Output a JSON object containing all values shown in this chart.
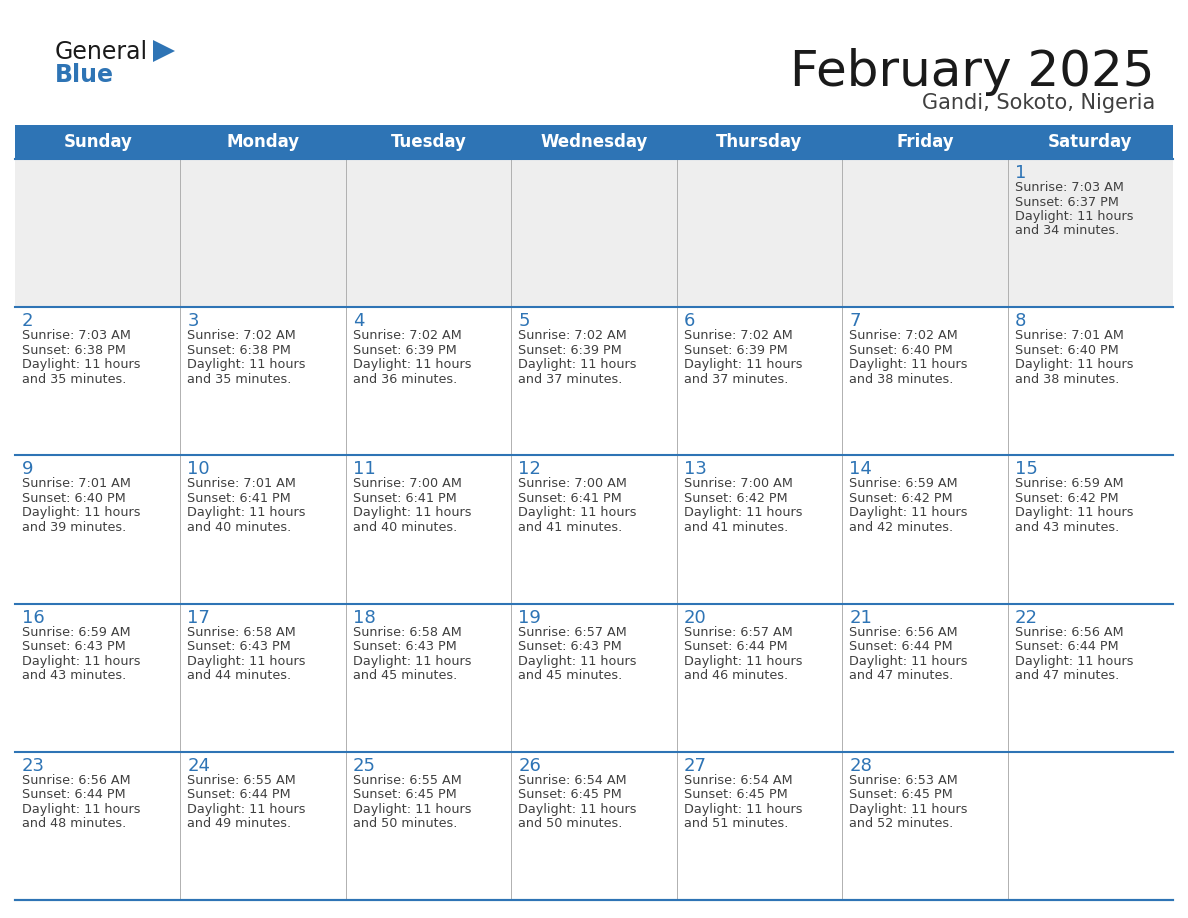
{
  "title": "February 2025",
  "subtitle": "Gandi, Sokoto, Nigeria",
  "days_of_week": [
    "Sunday",
    "Monday",
    "Tuesday",
    "Wednesday",
    "Thursday",
    "Friday",
    "Saturday"
  ],
  "header_bg": "#2e74b5",
  "header_text": "#ffffff",
  "cell_bg": "#ffffff",
  "cell_alt_bg": "#eeeeee",
  "border_color": "#2e74b5",
  "title_color": "#1a1a1a",
  "subtitle_color": "#404040",
  "day_number_color": "#2e74b5",
  "cell_text_color": "#404040",
  "logo_general_color": "#1a1a1a",
  "logo_blue_color": "#2e74b5",
  "calendar_data": [
    [
      null,
      null,
      null,
      null,
      null,
      null,
      {
        "day": 1,
        "sunrise": "7:03 AM",
        "sunset": "6:37 PM",
        "daylight_line1": "Daylight: 11 hours",
        "daylight_line2": "and 34 minutes."
      }
    ],
    [
      {
        "day": 2,
        "sunrise": "7:03 AM",
        "sunset": "6:38 PM",
        "daylight_line1": "Daylight: 11 hours",
        "daylight_line2": "and 35 minutes."
      },
      {
        "day": 3,
        "sunrise": "7:02 AM",
        "sunset": "6:38 PM",
        "daylight_line1": "Daylight: 11 hours",
        "daylight_line2": "and 35 minutes."
      },
      {
        "day": 4,
        "sunrise": "7:02 AM",
        "sunset": "6:39 PM",
        "daylight_line1": "Daylight: 11 hours",
        "daylight_line2": "and 36 minutes."
      },
      {
        "day": 5,
        "sunrise": "7:02 AM",
        "sunset": "6:39 PM",
        "daylight_line1": "Daylight: 11 hours",
        "daylight_line2": "and 37 minutes."
      },
      {
        "day": 6,
        "sunrise": "7:02 AM",
        "sunset": "6:39 PM",
        "daylight_line1": "Daylight: 11 hours",
        "daylight_line2": "and 37 minutes."
      },
      {
        "day": 7,
        "sunrise": "7:02 AM",
        "sunset": "6:40 PM",
        "daylight_line1": "Daylight: 11 hours",
        "daylight_line2": "and 38 minutes."
      },
      {
        "day": 8,
        "sunrise": "7:01 AM",
        "sunset": "6:40 PM",
        "daylight_line1": "Daylight: 11 hours",
        "daylight_line2": "and 38 minutes."
      }
    ],
    [
      {
        "day": 9,
        "sunrise": "7:01 AM",
        "sunset": "6:40 PM",
        "daylight_line1": "Daylight: 11 hours",
        "daylight_line2": "and 39 minutes."
      },
      {
        "day": 10,
        "sunrise": "7:01 AM",
        "sunset": "6:41 PM",
        "daylight_line1": "Daylight: 11 hours",
        "daylight_line2": "and 40 minutes."
      },
      {
        "day": 11,
        "sunrise": "7:00 AM",
        "sunset": "6:41 PM",
        "daylight_line1": "Daylight: 11 hours",
        "daylight_line2": "and 40 minutes."
      },
      {
        "day": 12,
        "sunrise": "7:00 AM",
        "sunset": "6:41 PM",
        "daylight_line1": "Daylight: 11 hours",
        "daylight_line2": "and 41 minutes."
      },
      {
        "day": 13,
        "sunrise": "7:00 AM",
        "sunset": "6:42 PM",
        "daylight_line1": "Daylight: 11 hours",
        "daylight_line2": "and 41 minutes."
      },
      {
        "day": 14,
        "sunrise": "6:59 AM",
        "sunset": "6:42 PM",
        "daylight_line1": "Daylight: 11 hours",
        "daylight_line2": "and 42 minutes."
      },
      {
        "day": 15,
        "sunrise": "6:59 AM",
        "sunset": "6:42 PM",
        "daylight_line1": "Daylight: 11 hours",
        "daylight_line2": "and 43 minutes."
      }
    ],
    [
      {
        "day": 16,
        "sunrise": "6:59 AM",
        "sunset": "6:43 PM",
        "daylight_line1": "Daylight: 11 hours",
        "daylight_line2": "and 43 minutes."
      },
      {
        "day": 17,
        "sunrise": "6:58 AM",
        "sunset": "6:43 PM",
        "daylight_line1": "Daylight: 11 hours",
        "daylight_line2": "and 44 minutes."
      },
      {
        "day": 18,
        "sunrise": "6:58 AM",
        "sunset": "6:43 PM",
        "daylight_line1": "Daylight: 11 hours",
        "daylight_line2": "and 45 minutes."
      },
      {
        "day": 19,
        "sunrise": "6:57 AM",
        "sunset": "6:43 PM",
        "daylight_line1": "Daylight: 11 hours",
        "daylight_line2": "and 45 minutes."
      },
      {
        "day": 20,
        "sunrise": "6:57 AM",
        "sunset": "6:44 PM",
        "daylight_line1": "Daylight: 11 hours",
        "daylight_line2": "and 46 minutes."
      },
      {
        "day": 21,
        "sunrise": "6:56 AM",
        "sunset": "6:44 PM",
        "daylight_line1": "Daylight: 11 hours",
        "daylight_line2": "and 47 minutes."
      },
      {
        "day": 22,
        "sunrise": "6:56 AM",
        "sunset": "6:44 PM",
        "daylight_line1": "Daylight: 11 hours",
        "daylight_line2": "and 47 minutes."
      }
    ],
    [
      {
        "day": 23,
        "sunrise": "6:56 AM",
        "sunset": "6:44 PM",
        "daylight_line1": "Daylight: 11 hours",
        "daylight_line2": "and 48 minutes."
      },
      {
        "day": 24,
        "sunrise": "6:55 AM",
        "sunset": "6:44 PM",
        "daylight_line1": "Daylight: 11 hours",
        "daylight_line2": "and 49 minutes."
      },
      {
        "day": 25,
        "sunrise": "6:55 AM",
        "sunset": "6:45 PM",
        "daylight_line1": "Daylight: 11 hours",
        "daylight_line2": "and 50 minutes."
      },
      {
        "day": 26,
        "sunrise": "6:54 AM",
        "sunset": "6:45 PM",
        "daylight_line1": "Daylight: 11 hours",
        "daylight_line2": "and 50 minutes."
      },
      {
        "day": 27,
        "sunrise": "6:54 AM",
        "sunset": "6:45 PM",
        "daylight_line1": "Daylight: 11 hours",
        "daylight_line2": "and 51 minutes."
      },
      {
        "day": 28,
        "sunrise": "6:53 AM",
        "sunset": "6:45 PM",
        "daylight_line1": "Daylight: 11 hours",
        "daylight_line2": "and 52 minutes."
      },
      null
    ]
  ],
  "fig_width": 11.88,
  "fig_height": 9.18,
  "dpi": 100
}
